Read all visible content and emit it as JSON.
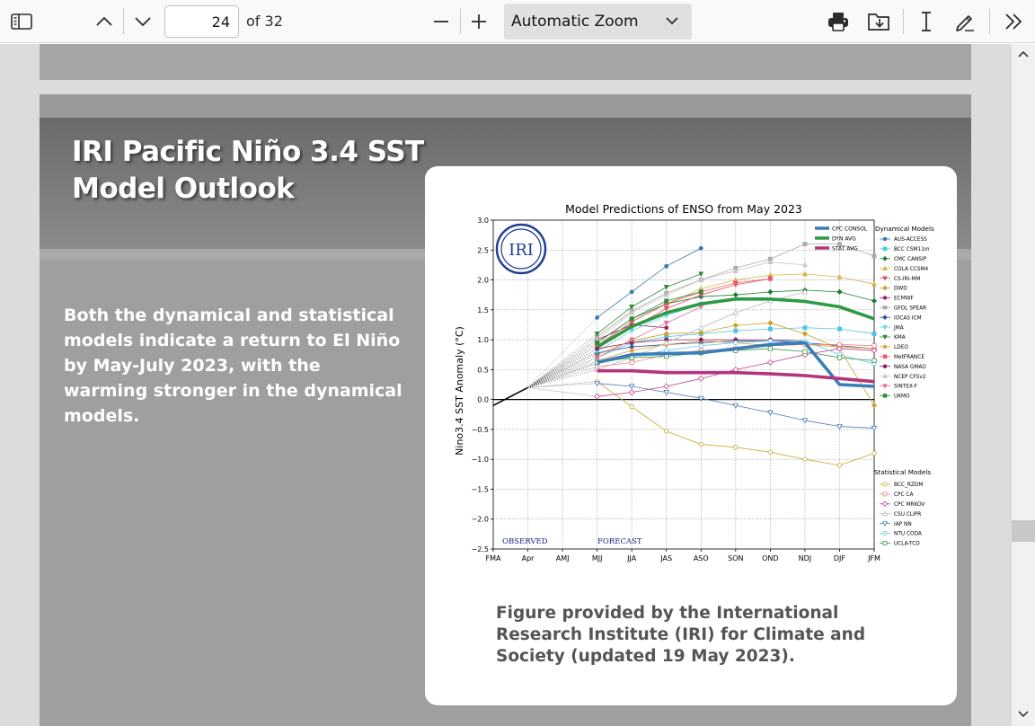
{
  "toolbar": {
    "sidebar_icon": "sidebar-toggle-icon",
    "prev_icon": "chevron-up-icon",
    "next_icon": "chevron-down-icon",
    "page_number": "24",
    "page_count_label": "of 32",
    "zoom_out_icon": "minus-icon",
    "zoom_in_icon": "plus-icon",
    "zoom_value": "Automatic Zoom",
    "print_icon": "printer-icon",
    "save_icon": "download-icon",
    "text_tool_icon": "text-cursor-icon",
    "draw_icon": "pen-icon",
    "more_icon": "double-chevron-right-icon"
  },
  "slide": {
    "title": "IRI Pacific Niño 3.4 SST Model Outlook",
    "body": "Both the dynamical and statistical models indicate a return to El Niño by May-July 2023, with the warming stronger in the dynamical models.",
    "caption": "Figure provided by the International Research Institute (IRI) for Climate and Society (updated 19 May 2023).",
    "logo_text": "IRI"
  },
  "chart_data": {
    "type": "line",
    "title": "Model Predictions of ENSO from May 2023",
    "xlabel": "",
    "ylabel": "Nino3.4 SST Anomaly (°C)",
    "ylim": [
      -2.5,
      3.0
    ],
    "yticks": [
      "3.0",
      "2.5",
      "2.0",
      "1.5",
      "1.0",
      "0.5",
      "0.0",
      "−0.5",
      "−1.0",
      "−1.5",
      "−2.0",
      "−2.5"
    ],
    "categories": [
      "FMA",
      "Apr",
      "AMJ",
      "MJJ",
      "JJA",
      "JAS",
      "ASO",
      "SON",
      "OND",
      "NDJ",
      "DJF",
      "JFM"
    ],
    "observed_label": "OBSERVED",
    "forecast_label": "FORECAST",
    "grid": true,
    "observed": {
      "x": [
        "FMA",
        "Apr"
      ],
      "y": [
        -0.1,
        0.2
      ]
    },
    "avg_legend_title": "",
    "dyn_legend_title": "Dynamical Models",
    "stat_legend_title": "Statistical Models",
    "averages": [
      {
        "name": "CPC CONSOL",
        "color": "#3b7db8",
        "values": [
          0.62,
          0.75,
          0.77,
          0.78,
          0.85,
          0.92,
          0.95,
          0.25,
          0.22
        ]
      },
      {
        "name": "DYN AVG",
        "color": "#2e9a45",
        "values": [
          0.88,
          1.22,
          1.45,
          1.6,
          1.68,
          1.68,
          1.64,
          1.55,
          1.35
        ]
      },
      {
        "name": "STAT AVG",
        "color": "#b3357f",
        "values": [
          0.48,
          0.48,
          0.45,
          0.45,
          0.45,
          0.43,
          0.4,
          0.35,
          0.3
        ]
      }
    ],
    "dynamical_models": [
      {
        "name": "AUS-ACCESS",
        "color": "#3a78b5",
        "marker": "circle",
        "values": [
          1.37,
          1.8,
          2.23,
          2.53,
          null,
          null,
          null,
          null,
          null
        ]
      },
      {
        "name": "BCC CSM11m",
        "color": "#4fc3e3",
        "marker": "square",
        "values": [
          0.7,
          0.95,
          1.05,
          1.1,
          1.15,
          1.18,
          1.2,
          1.18,
          1.1
        ]
      },
      {
        "name": "CMC CANSIP",
        "color": "#1e7d32",
        "marker": "diamond",
        "values": [
          0.95,
          1.35,
          1.6,
          1.72,
          1.75,
          1.8,
          1.83,
          1.8,
          1.65
        ]
      },
      {
        "name": "COLA CCSM4",
        "color": "#d4b84a",
        "marker": "triangle",
        "values": [
          0.9,
          1.3,
          1.6,
          1.85,
          2.0,
          2.08,
          2.1,
          2.05,
          1.93
        ]
      },
      {
        "name": "CS-IRI-MM",
        "color": "#e0506a",
        "marker": "tri-down",
        "values": [
          0.85,
          1.2,
          1.52,
          1.75,
          1.92,
          2.02,
          null,
          null,
          null
        ]
      },
      {
        "name": "DWD",
        "color": "#c9a227",
        "marker": "diamond",
        "values": [
          0.75,
          0.98,
          1.1,
          1.12,
          1.24,
          1.28,
          1.1,
          0.85,
          -0.1
        ]
      },
      {
        "name": "ECMWF",
        "color": "#a0206e",
        "marker": "circle",
        "values": [
          1.0,
          1.25,
          1.2,
          null,
          null,
          null,
          null,
          null,
          null
        ]
      },
      {
        "name": "GFDL SPEAR",
        "color": "#aaaaaa",
        "marker": "square",
        "values": [
          1.05,
          1.48,
          1.78,
          2.0,
          2.2,
          2.35,
          2.6,
          2.6,
          2.4
        ]
      },
      {
        "name": "IOCAS ICM",
        "color": "#325a9c",
        "marker": "diamond",
        "values": [
          0.78,
          0.88,
          0.92,
          0.95,
          0.98,
          0.98,
          0.95,
          0.9,
          0.85
        ]
      },
      {
        "name": "JMA",
        "color": "#6cd4f0",
        "marker": "tri-down",
        "values": [
          0.8,
          1.15,
          1.4,
          1.6,
          null,
          null,
          null,
          null,
          null
        ]
      },
      {
        "name": "KMA",
        "color": "#2f8a38",
        "marker": "tri-down",
        "values": [
          1.1,
          1.55,
          1.88,
          2.1,
          null,
          null,
          null,
          null,
          null
        ]
      },
      {
        "name": "LDEO",
        "color": "#e8a13a",
        "marker": "circle",
        "values": [
          0.65,
          0.82,
          0.92,
          0.98,
          0.95,
          0.9,
          0.92,
          0.88,
          0.85
        ]
      },
      {
        "name": "MetFRANCE",
        "color": "#f05a6e",
        "marker": "square",
        "values": [
          0.9,
          1.3,
          1.6,
          1.8,
          1.95,
          2.02,
          null,
          null,
          null
        ]
      },
      {
        "name": "NASA GMAO",
        "color": "#8a1f5c",
        "marker": "circle",
        "values": [
          0.85,
          0.95,
          1.0,
          1.0,
          1.0,
          1.0,
          0.98,
          null,
          null
        ]
      },
      {
        "name": "NCEP CFSv2",
        "color": "#c8c8c8",
        "marker": "triangle",
        "values": [
          1.0,
          1.45,
          1.75,
          2.0,
          2.15,
          2.3,
          2.25,
          null,
          null
        ]
      },
      {
        "name": "SINTEX-F",
        "color": "#e870a0",
        "marker": "tri-down",
        "values": [
          0.7,
          1.0,
          1.28,
          1.55,
          null,
          null,
          null,
          null,
          null
        ]
      },
      {
        "name": "UKMO",
        "color": "#2e8b3c",
        "marker": "square",
        "values": [
          0.95,
          1.35,
          1.65,
          1.8,
          null,
          null,
          null,
          null,
          null
        ]
      }
    ],
    "statistical_models": [
      {
        "name": "BCC_RZDM",
        "color": "#c8a82a",
        "marker": "circle",
        "values": [
          0.3,
          -0.12,
          -0.53,
          -0.75,
          -0.8,
          -0.88,
          -1.0,
          -1.1,
          -0.9
        ]
      },
      {
        "name": "CPC CA",
        "color": "#f08080",
        "marker": "square",
        "values": [
          0.55,
          0.62,
          0.75,
          0.82,
          0.85,
          0.9,
          0.92,
          0.92,
          0.9
        ]
      },
      {
        "name": "CPC MRKOV",
        "color": "#c0408a",
        "marker": "diamond",
        "values": [
          0.05,
          0.12,
          0.22,
          0.35,
          0.5,
          0.62,
          0.75,
          0.85,
          0.82
        ]
      },
      {
        "name": "CSU CLIPR",
        "color": "#bbbbbb",
        "marker": "triangle",
        "values": [
          0.5,
          0.7,
          0.95,
          1.2,
          1.45,
          1.65,
          1.8,
          null,
          null
        ]
      },
      {
        "name": "IAP NN",
        "color": "#4a7ab8",
        "marker": "tri-down",
        "values": [
          0.27,
          0.22,
          0.12,
          0.02,
          -0.1,
          -0.22,
          -0.35,
          -0.45,
          -0.48
        ]
      },
      {
        "name": "NTU CODA",
        "color": "#5ec8e8",
        "marker": "circle",
        "values": [
          0.6,
          0.72,
          0.82,
          0.9,
          0.95,
          0.98,
          0.98,
          0.75,
          0.6
        ]
      },
      {
        "name": "UCLA-TCD",
        "color": "#3a9a4a",
        "marker": "square",
        "values": [
          0.62,
          0.7,
          0.72,
          0.78,
          0.82,
          0.85,
          0.8,
          0.7,
          0.65
        ]
      }
    ]
  }
}
